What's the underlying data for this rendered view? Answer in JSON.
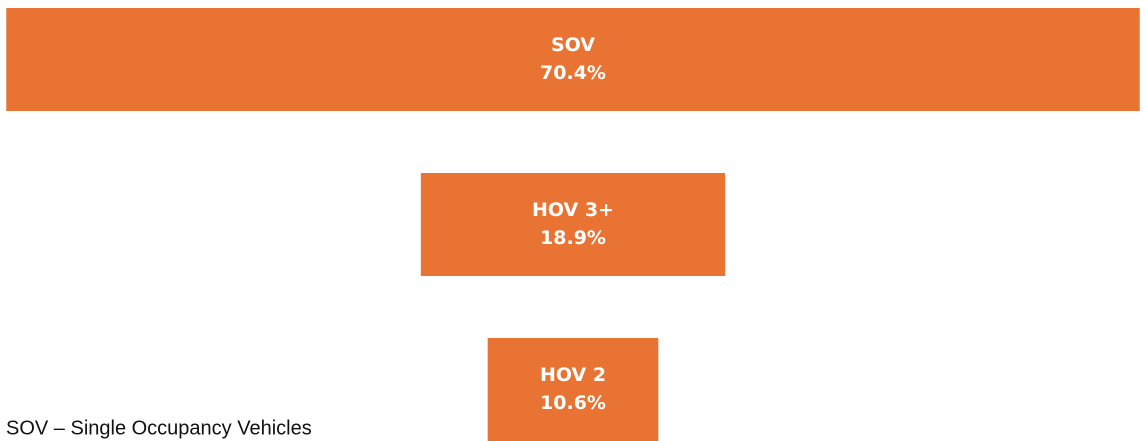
{
  "chart_data": {
    "type": "funnel",
    "categories": [
      "SOV",
      "HOV 3+",
      "HOV 2"
    ],
    "values": [
      70.4,
      18.9,
      10.6
    ],
    "value_labels": [
      "70.4%",
      "18.9%",
      "10.6%"
    ],
    "color": "#e87332",
    "note": "SOV – Single Occupancy Vehicles"
  }
}
